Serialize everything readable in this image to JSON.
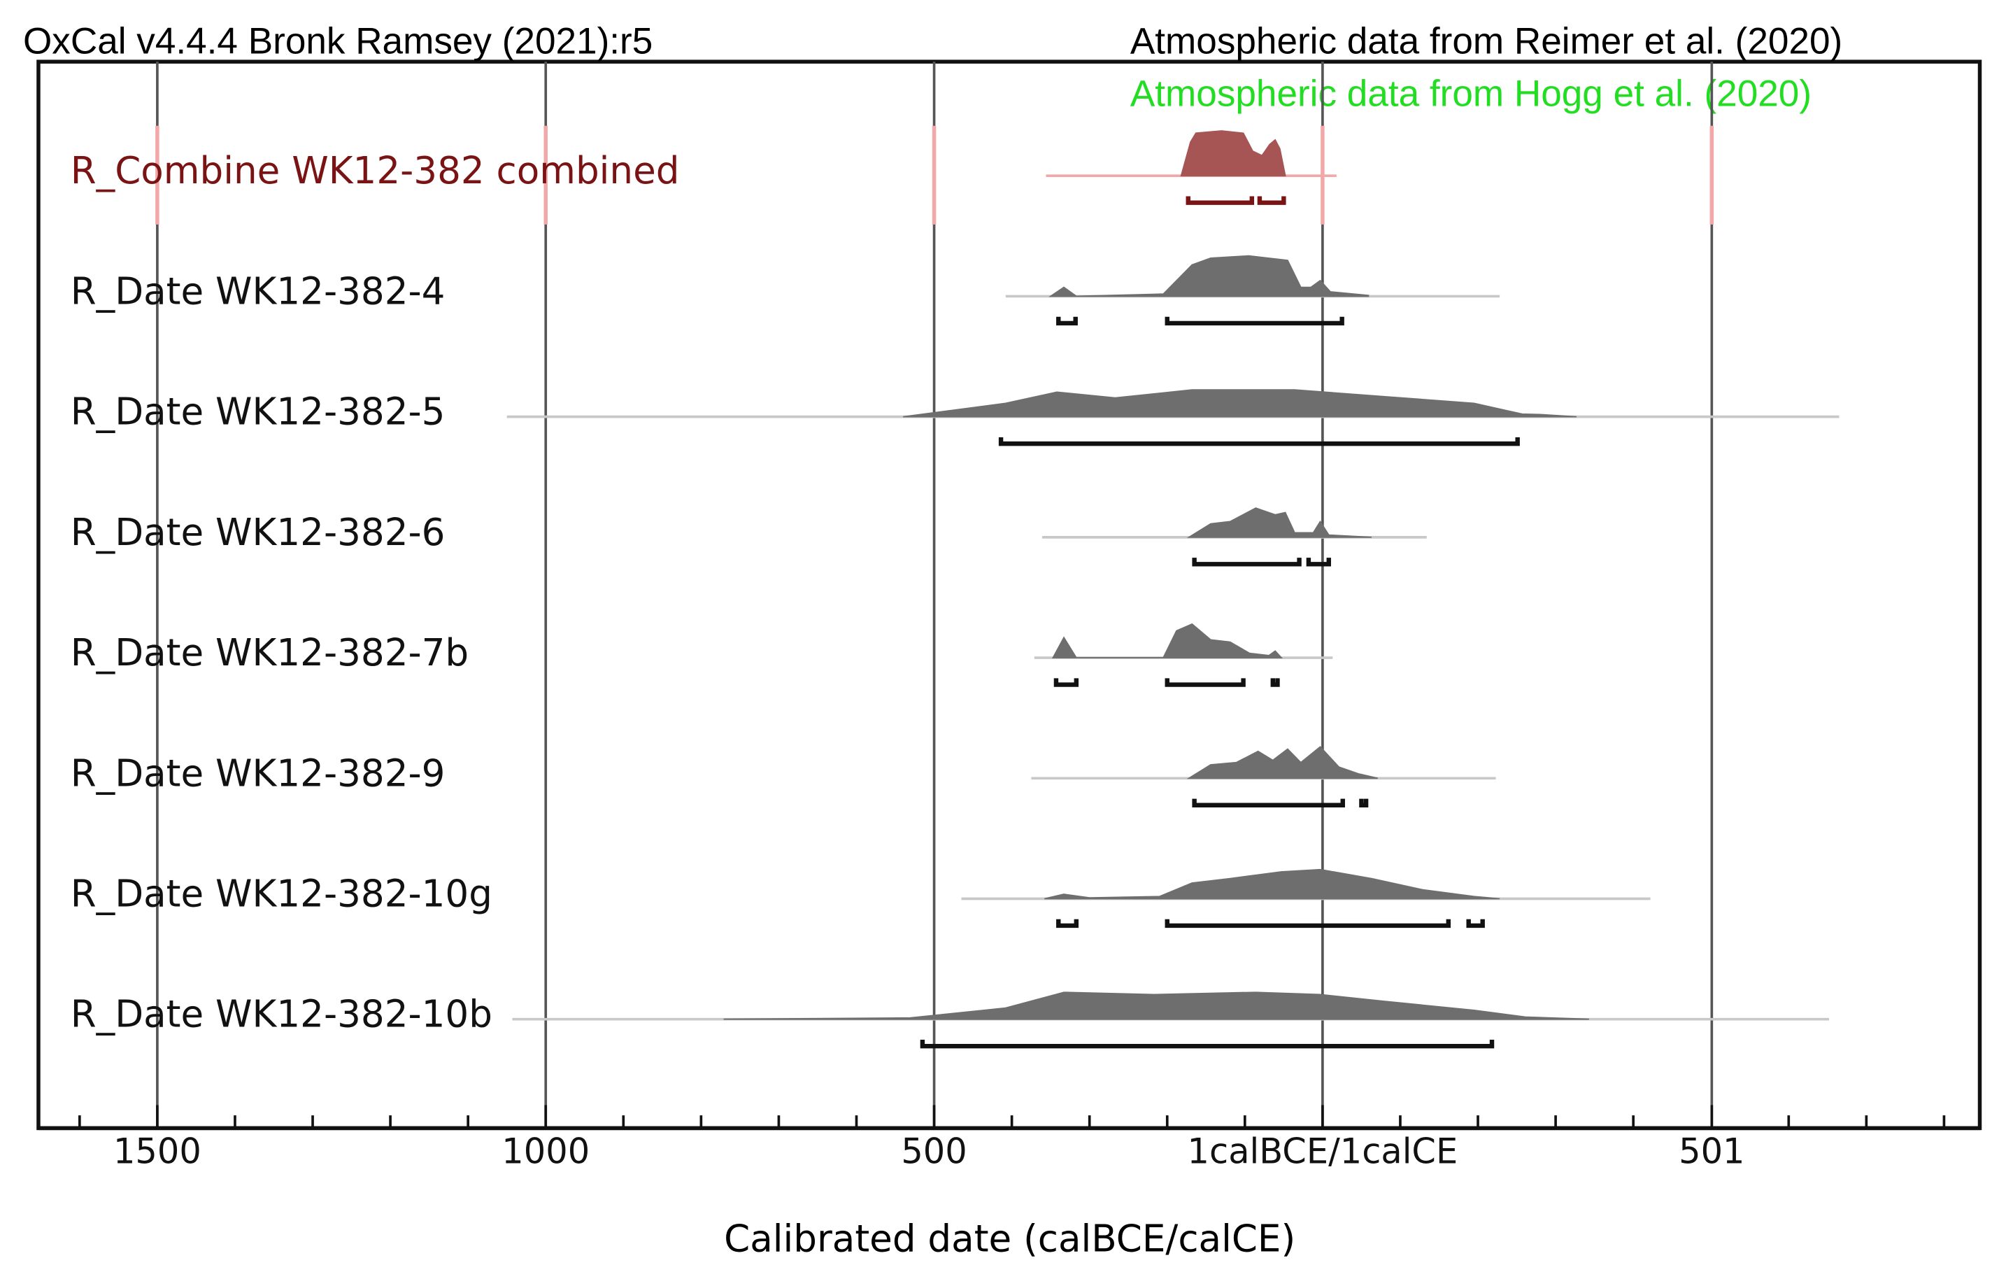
{
  "header": {
    "left": "OxCal v4.4.4 Bronk Ramsey (2021):r5",
    "right": "Atmospheric data from Reimer et al. (2020)",
    "right2": "Atmospheric data from Hogg et al. (2020)",
    "right2_color": "#22dd22"
  },
  "chart_data": {
    "type": "multiplot",
    "xlabel": "Calibrated date (calBCE/calCE)",
    "xlim": [
      -1653,
      846
    ],
    "xticks": [
      {
        "value": -1500,
        "label": "1500"
      },
      {
        "value": -1000,
        "label": "1000"
      },
      {
        "value": -500,
        "label": "500"
      },
      {
        "value": 0,
        "label": "1calBCE/1calCE"
      },
      501
    ],
    "xminorticks": [
      -1600,
      -1400,
      -1300,
      -1200,
      -1100,
      -900,
      -800,
      -700,
      -600,
      -400,
      -300,
      -200,
      -100,
      100,
      200,
      300,
      400,
      600,
      700,
      800
    ],
    "grid": true,
    "rows": [
      {
        "name": "R_Combine WK12-382 combined",
        "color": "#a65454",
        "text_color": "#7a1414",
        "line_color": "#f2a8a8",
        "range": [
          -356,
          18
        ],
        "density": {
          "x": [
            -182,
            -170,
            -163,
            -130,
            -102,
            -90,
            -78,
            -68,
            -61,
            -55,
            -48
          ],
          "y": [
            0,
            0.75,
            0.95,
            1,
            0.95,
            0.55,
            0.45,
            0.7,
            0.8,
            0.6,
            0
          ]
        },
        "intervals": [
          [
            -173,
            -91
          ],
          [
            -81,
            -50
          ]
        ]
      },
      {
        "name": "R_Date WK12-382-4",
        "color": "#6e6e6e",
        "text_color": "#111111",
        "line_color": "#c8c8c8",
        "range": [
          -408,
          228
        ],
        "density": {
          "x": [
            -350,
            -333,
            -317,
            -205,
            -168,
            -144,
            -95,
            -45,
            -28,
            -15,
            -3,
            10,
            59
          ],
          "y": [
            0,
            0.2,
            0,
            0.05,
            0.7,
            0.85,
            0.9,
            0.8,
            0.2,
            0.2,
            0.35,
            0.1,
            0.02
          ]
        },
        "intervals": [
          [
            -340,
            -318
          ],
          [
            -200,
            25
          ]
        ]
      },
      {
        "name": "R_Date WK12-382-5",
        "color": "#6e6e6e",
        "text_color": "#111111",
        "line_color": "#c8c8c8",
        "range": [
          -1050,
          665
        ],
        "density": {
          "x": [
            -540,
            -408,
            -342,
            -267,
            -168,
            -36,
            79,
            195,
            257,
            280,
            327
          ],
          "y": [
            0,
            0.3,
            0.55,
            0.42,
            0.6,
            0.6,
            0.45,
            0.3,
            0.06,
            0.05,
            0
          ]
        },
        "intervals": [
          [
            -414,
            251
          ]
        ]
      },
      {
        "name": "R_Date WK12-382-6",
        "color": "#6e6e6e",
        "text_color": "#111111",
        "line_color": "#c8c8c8",
        "range": [
          -361,
          134
        ],
        "density": {
          "x": [
            -172,
            -144,
            -119,
            -86,
            -61,
            -48,
            -36,
            -12,
            -3,
            8,
            63
          ],
          "y": [
            0,
            0.3,
            0.35,
            0.65,
            0.5,
            0.55,
            0.1,
            0.1,
            0.35,
            0.05,
            0
          ]
        },
        "intervals": [
          [
            -165,
            -30
          ],
          [
            -18,
            8
          ]
        ]
      },
      {
        "name": "R_Date WK12-382-7b",
        "color": "#6e6e6e",
        "text_color": "#111111",
        "line_color": "#c8c8c8",
        "range": [
          -371,
          13
        ],
        "density": {
          "x": [
            -347,
            -333,
            -317,
            -205,
            -188,
            -168,
            -144,
            -119,
            -94,
            -69,
            -61,
            -53
          ],
          "y": [
            0,
            0.45,
            0,
            0,
            0.6,
            0.75,
            0.4,
            0.35,
            0.1,
            0.05,
            0.15,
            0
          ]
        },
        "intervals": [
          [
            -343,
            -317
          ],
          [
            -200,
            -102
          ],
          [
            -64,
            -58
          ]
        ]
      },
      {
        "name": "R_Date WK12-382-9",
        "color": "#6e6e6e",
        "text_color": "#111111",
        "line_color": "#c8c8c8",
        "range": [
          -375,
          223
        ],
        "density": {
          "x": [
            -172,
            -144,
            -111,
            -83,
            -64,
            -45,
            -28,
            -3,
            21,
            46,
            71
          ],
          "y": [
            0,
            0.3,
            0.35,
            0.6,
            0.4,
            0.65,
            0.35,
            0.7,
            0.25,
            0.1,
            0
          ]
        },
        "intervals": [
          [
            -165,
            26
          ],
          [
            50,
            56
          ]
        ]
      },
      {
        "name": "R_Date WK12-382-10g",
        "color": "#6e6e6e",
        "text_color": "#111111",
        "line_color": "#c8c8c8",
        "range": [
          -465,
          422
        ],
        "density": {
          "x": [
            -358,
            -333,
            -300,
            -210,
            -168,
            -119,
            -53,
            -3,
            63,
            129,
            195,
            228
          ],
          "y": [
            0,
            0.1,
            0.02,
            0.05,
            0.35,
            0.45,
            0.6,
            0.65,
            0.45,
            0.2,
            0.05,
            0
          ]
        },
        "intervals": [
          [
            -340,
            -317
          ],
          [
            -200,
            162
          ],
          [
            188,
            206
          ]
        ]
      },
      {
        "name": "R_Date WK12-382-10b",
        "color": "#6e6e6e",
        "text_color": "#111111",
        "line_color": "#c8c8c8",
        "range": [
          -1043,
          652
        ],
        "density": {
          "x": [
            -771,
            -531,
            -408,
            -333,
            -218,
            -86,
            -3,
            79,
            195,
            261,
            343
          ],
          "y": [
            0,
            0.03,
            0.25,
            0.6,
            0.55,
            0.6,
            0.55,
            0.4,
            0.2,
            0.05,
            0
          ]
        },
        "intervals": [
          [
            -515,
            218
          ]
        ]
      }
    ]
  }
}
